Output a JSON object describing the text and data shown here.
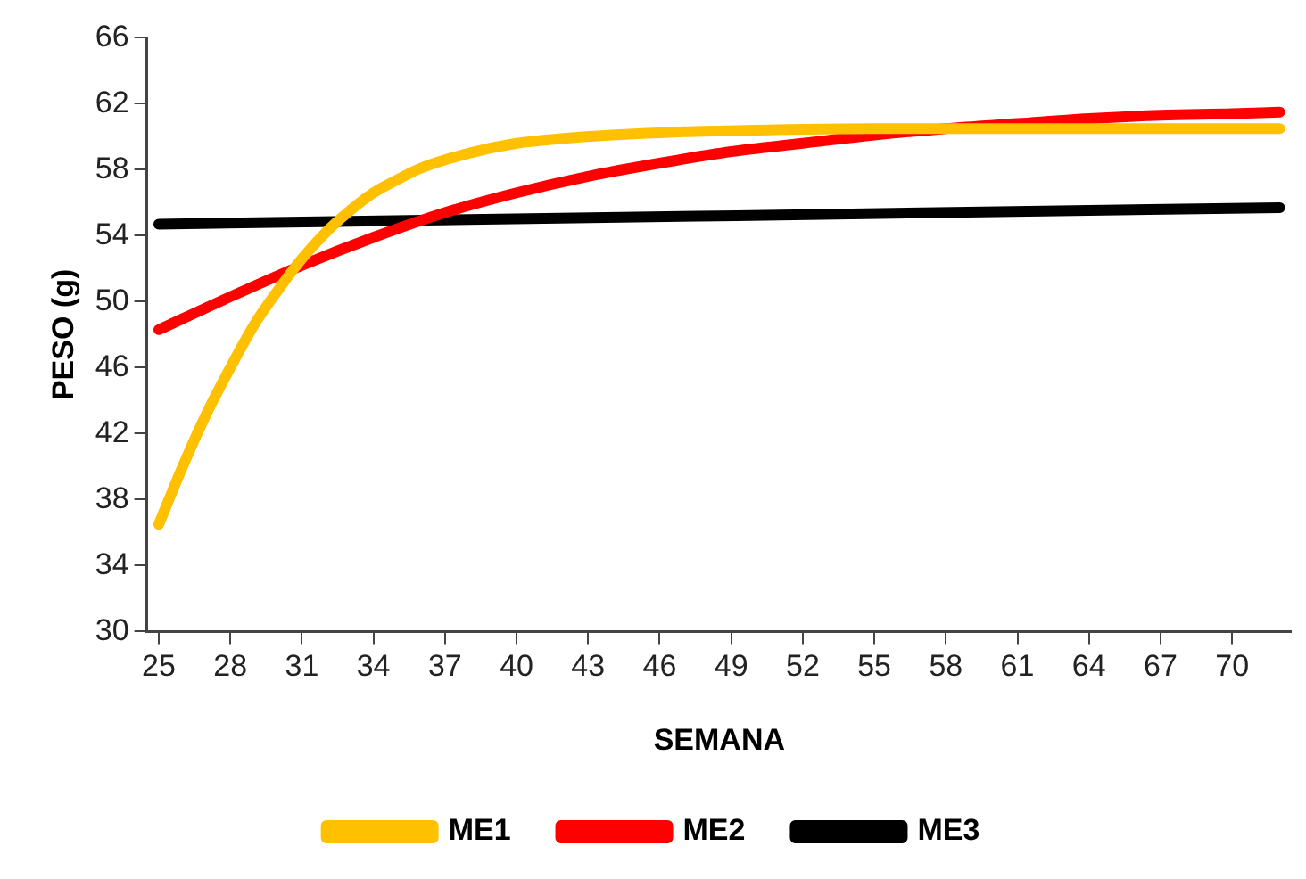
{
  "chart_data": {
    "type": "line",
    "xlabel": "SEMANA",
    "ylabel": "PESO (g)",
    "xlim": [
      24.5,
      72.5
    ],
    "ylim": [
      30,
      66
    ],
    "xticks": [
      25,
      28,
      31,
      34,
      37,
      40,
      43,
      46,
      49,
      52,
      55,
      58,
      61,
      64,
      67,
      70
    ],
    "yticks": [
      30,
      34,
      38,
      42,
      46,
      50,
      54,
      58,
      62,
      66
    ],
    "grid": false,
    "legend": "bottom",
    "marker": "none",
    "line_style": "solid",
    "series": [
      {
        "name": "ME1",
        "color": "#ffc000",
        "x": [
          25,
          26,
          27,
          28,
          29,
          30,
          31,
          32,
          33,
          34,
          35,
          36,
          38,
          40,
          42,
          44,
          47,
          50,
          55,
          60,
          65,
          72
        ],
        "values": [
          36.5,
          40.0,
          43.2,
          46.0,
          48.6,
          50.7,
          52.6,
          54.2,
          55.5,
          56.6,
          57.4,
          58.1,
          59.0,
          59.6,
          59.9,
          60.1,
          60.3,
          60.4,
          60.5,
          60.5,
          60.5,
          60.5
        ]
      },
      {
        "name": "ME2",
        "color": "#ff0000",
        "x": [
          25,
          28,
          31,
          34,
          37,
          40,
          43,
          46,
          49,
          52,
          55,
          58,
          61,
          64,
          67,
          70,
          72
        ],
        "values": [
          48.3,
          50.3,
          52.2,
          53.9,
          55.4,
          56.6,
          57.6,
          58.4,
          59.1,
          59.6,
          60.1,
          60.5,
          60.8,
          61.1,
          61.3,
          61.4,
          61.5
        ]
      },
      {
        "name": "ME3",
        "color": "#000000",
        "x": [
          25,
          72
        ],
        "values": [
          54.7,
          55.7
        ]
      }
    ]
  }
}
